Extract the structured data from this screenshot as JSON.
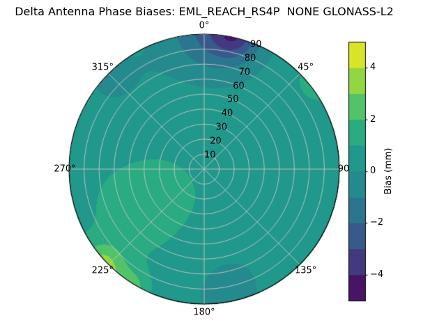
{
  "chart_data": {
    "type": "polar_filled_contour",
    "title": "Delta Antenna Phase Biases: EML_REACH_RS4P  NONE GLONASS-L2",
    "azimuth_tick_labels": [
      "0°",
      "45°",
      "90",
      "135°",
      "180°",
      "225°",
      "270°",
      "315°"
    ],
    "azimuth_tick_degrees": [
      0,
      45,
      90,
      135,
      180,
      225,
      270,
      315
    ],
    "radial_tick_labels": [
      "10",
      "20",
      "30",
      "40",
      "50",
      "60",
      "70",
      "80",
      "90"
    ],
    "radial_ticks": [
      10,
      20,
      30,
      40,
      50,
      60,
      70,
      80,
      90
    ],
    "radial_range": [
      0,
      90
    ],
    "grid": true,
    "colorbar": {
      "label": "Bias (mm)",
      "tick_labels": [
        "4",
        "2",
        "0",
        "−2",
        "−4"
      ],
      "tick_values": [
        4,
        2,
        0,
        -2,
        -4
      ],
      "range": [
        -5,
        5
      ],
      "levels": [
        -5,
        -4,
        -3,
        -2,
        -1,
        0,
        1,
        2,
        3,
        4,
        5
      ],
      "colormap": "viridis"
    },
    "field": {
      "base_bias_mm": 0.6,
      "anomalies": [
        {
          "azimuth_deg": 5,
          "radius": 95,
          "amplitude_mm": -3.2,
          "sigma": 22
        },
        {
          "azimuth_deg": 13,
          "radius": 92,
          "amplitude_mm": -2.2,
          "sigma": 10
        },
        {
          "azimuth_deg": 315,
          "radius": 85,
          "amplitude_mm": -0.7,
          "sigma": 25
        },
        {
          "azimuth_deg": 52,
          "radius": 97,
          "amplitude_mm": 2.6,
          "sigma": 7
        },
        {
          "azimuth_deg": 213,
          "radius": 95,
          "amplitude_mm": 2.2,
          "sigma": 9
        },
        {
          "azimuth_deg": 227,
          "radius": 93,
          "amplitude_mm": 2.6,
          "sigma": 10
        },
        {
          "azimuth_deg": 235,
          "radius": 45,
          "amplitude_mm": 0.8,
          "sigma": 30
        },
        {
          "azimuth_deg": 170,
          "radius": 80,
          "amplitude_mm": -0.8,
          "sigma": 28
        }
      ]
    },
    "viridis_stops": [
      "#440154",
      "#482878",
      "#3e4a89",
      "#31688e",
      "#26828e",
      "#21918c",
      "#1f9e89",
      "#35b779",
      "#6ece58",
      "#b5de2b",
      "#fde725"
    ],
    "grid_color": "#c8c8c8",
    "edge_color": "#000000"
  }
}
